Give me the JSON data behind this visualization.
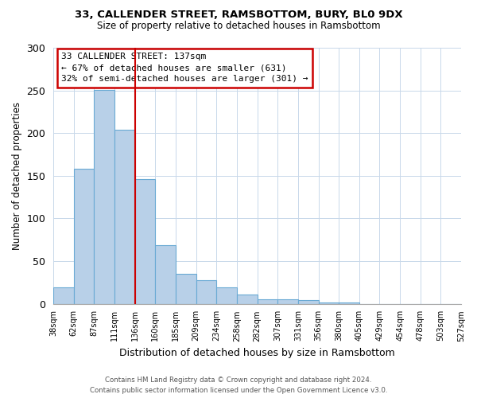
{
  "title_line1": "33, CALLENDER STREET, RAMSBOTTOM, BURY, BL0 9DX",
  "title_line2": "Size of property relative to detached houses in Ramsbottom",
  "xlabel": "Distribution of detached houses by size in Ramsbottom",
  "ylabel": "Number of detached properties",
  "bin_labels": [
    "38sqm",
    "62sqm",
    "87sqm",
    "111sqm",
    "136sqm",
    "160sqm",
    "185sqm",
    "209sqm",
    "234sqm",
    "258sqm",
    "282sqm",
    "307sqm",
    "331sqm",
    "356sqm",
    "380sqm",
    "405sqm",
    "429sqm",
    "454sqm",
    "478sqm",
    "503sqm",
    "527sqm"
  ],
  "bar_heights": [
    19,
    158,
    251,
    204,
    146,
    69,
    35,
    28,
    19,
    11,
    5,
    5,
    4,
    1,
    1,
    0,
    0,
    0,
    0,
    0
  ],
  "bar_color": "#b8d0e8",
  "bar_edge_color": "#6aaad4",
  "annotation_title": "33 CALLENDER STREET: 137sqm",
  "annotation_line1": "← 67% of detached houses are smaller (631)",
  "annotation_line2": "32% of semi-detached houses are larger (301) →",
  "annotation_box_color": "#ffffff",
  "annotation_box_edge_color": "#cc0000",
  "property_line_bin": 4,
  "ylim": [
    0,
    300
  ],
  "yticks": [
    0,
    50,
    100,
    150,
    200,
    250,
    300
  ],
  "footer_line1": "Contains HM Land Registry data © Crown copyright and database right 2024.",
  "footer_line2": "Contains public sector information licensed under the Open Government Licence v3.0.",
  "n_bars": 20
}
